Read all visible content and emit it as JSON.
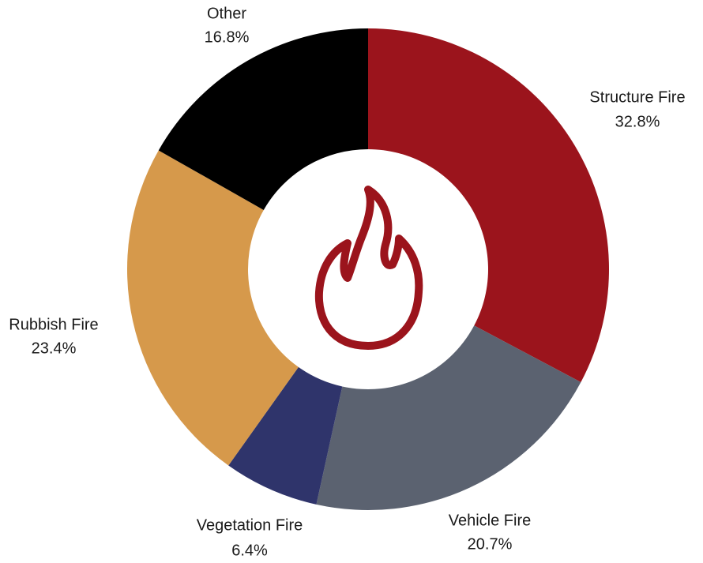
{
  "chart_data": {
    "type": "donut",
    "categories": [
      "Structure Fire",
      "Vehicle Fire",
      "Vegetation Fire",
      "Rubbish Fire",
      "Other"
    ],
    "values": [
      32.8,
      20.7,
      6.4,
      23.4,
      16.8
    ],
    "value_labels": [
      "32.8%",
      "20.7%",
      "6.4%",
      "23.4%",
      "16.8%"
    ],
    "colors": [
      "#9b141c",
      "#5b6270",
      "#2f346b",
      "#d6994b",
      "#000000"
    ]
  }
}
